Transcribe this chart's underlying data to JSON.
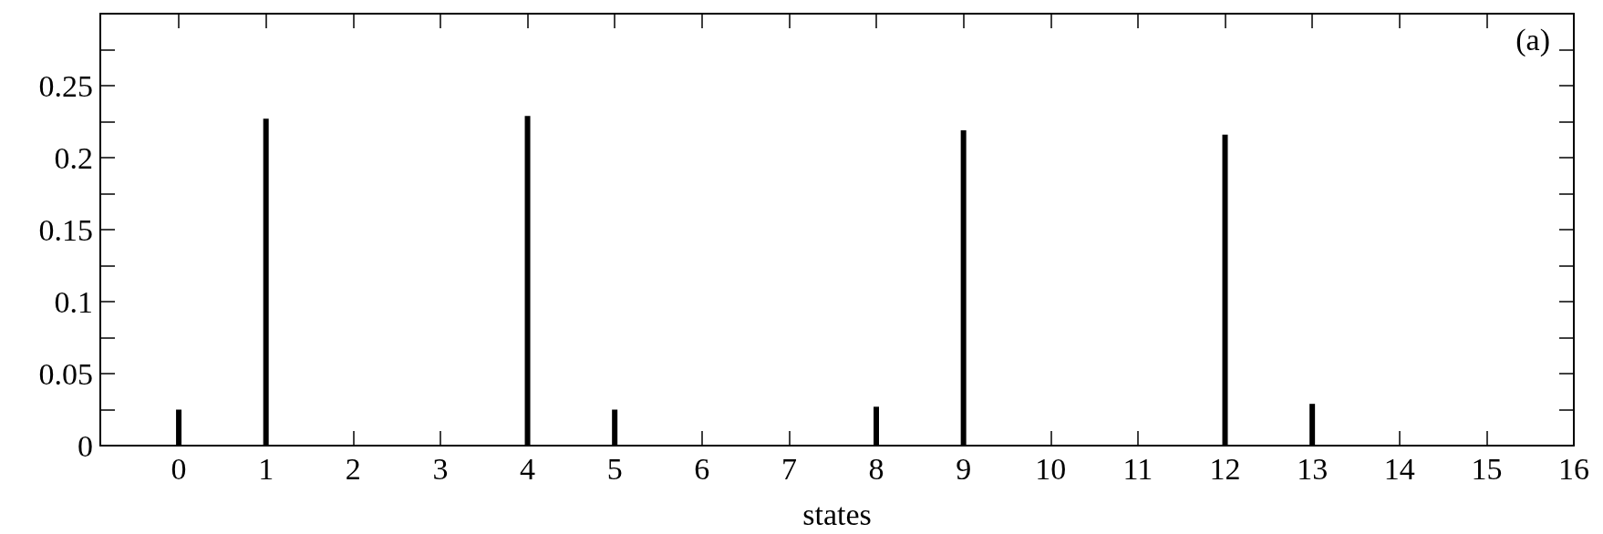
{
  "chart_data": {
    "type": "bar",
    "xlabel": "states",
    "annotations": [
      "(a)"
    ],
    "x": [
      0,
      1,
      4,
      5,
      8,
      9,
      12,
      13
    ],
    "values": [
      0.025,
      0.227,
      0.229,
      0.025,
      0.027,
      0.219,
      0.216,
      0.029
    ],
    "color": "#000000",
    "xlim": [
      -0.9,
      16
    ],
    "xticks": [
      0,
      1,
      2,
      3,
      4,
      5,
      6,
      7,
      8,
      9,
      10,
      11,
      12,
      13,
      14,
      15,
      16
    ],
    "ylim": [
      0,
      0.3
    ],
    "yticks": [
      0,
      {
        "value": 0.025,
        "label": null
      },
      0.05,
      {
        "value": 0.075,
        "label": null
      },
      0.1,
      {
        "value": 0.125,
        "label": null
      },
      0.15,
      {
        "value": 0.175,
        "label": null
      },
      0.2,
      {
        "value": 0.225,
        "label": null
      },
      0.25,
      {
        "value": 0.275,
        "label": null
      }
    ],
    "grid": false
  }
}
